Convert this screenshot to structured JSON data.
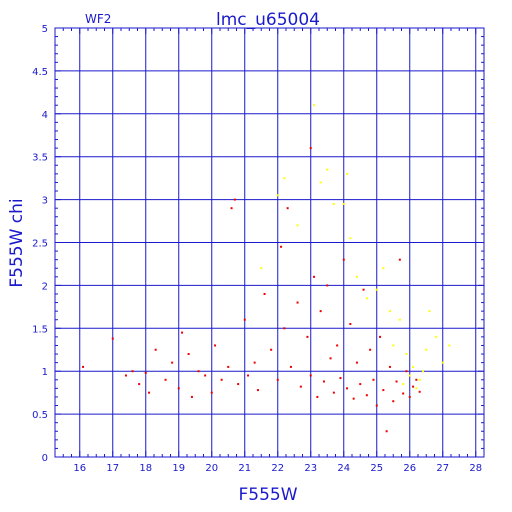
{
  "chart_data": {
    "type": "scatter",
    "title": "lmc_u65004",
    "corner_label": "WF2",
    "xlabel": "F555W",
    "ylabel": "F555W chi",
    "xlim": [
      15.25,
      28.25
    ],
    "ylim": [
      0,
      5
    ],
    "x_ticks": [
      16,
      17,
      18,
      19,
      20,
      21,
      22,
      23,
      24,
      25,
      26,
      27,
      28
    ],
    "y_ticks": [
      0,
      0.5,
      1,
      1.5,
      2,
      2.5,
      3,
      3.5,
      4,
      4.5,
      5
    ],
    "y_tick_labels": [
      "0",
      "0.5",
      "1",
      "1.5",
      "2",
      "2.5",
      "3",
      "3.5",
      "4",
      "4.5",
      "5"
    ],
    "grid": true,
    "colors": {
      "frame": "#1a1acc",
      "red_series": "#ee0000",
      "yellow_series": "#ffff00"
    },
    "series": [
      {
        "color": "#ee0000",
        "points": [
          [
            16.1,
            1.05
          ],
          [
            17.0,
            1.38
          ],
          [
            17.4,
            0.95
          ],
          [
            17.6,
            1.0
          ],
          [
            17.8,
            0.85
          ],
          [
            18.0,
            0.98
          ],
          [
            18.1,
            0.75
          ],
          [
            18.3,
            1.25
          ],
          [
            18.6,
            0.9
          ],
          [
            18.8,
            1.1
          ],
          [
            19.0,
            0.8
          ],
          [
            19.1,
            1.45
          ],
          [
            19.3,
            1.2
          ],
          [
            19.4,
            0.7
          ],
          [
            19.6,
            1.0
          ],
          [
            19.8,
            0.95
          ],
          [
            20.0,
            0.75
          ],
          [
            20.1,
            1.3
          ],
          [
            20.3,
            0.9
          ],
          [
            20.5,
            1.05
          ],
          [
            20.7,
            3.0
          ],
          [
            20.6,
            2.9
          ],
          [
            20.8,
            0.85
          ],
          [
            21.0,
            1.6
          ],
          [
            21.1,
            0.95
          ],
          [
            21.3,
            1.1
          ],
          [
            21.4,
            0.78
          ],
          [
            21.6,
            1.9
          ],
          [
            21.8,
            1.25
          ],
          [
            22.0,
            0.9
          ],
          [
            22.1,
            2.45
          ],
          [
            22.2,
            1.5
          ],
          [
            22.3,
            2.9
          ],
          [
            22.4,
            1.05
          ],
          [
            22.6,
            1.8
          ],
          [
            22.7,
            0.82
          ],
          [
            22.9,
            1.4
          ],
          [
            23.0,
            3.6
          ],
          [
            23.0,
            0.95
          ],
          [
            23.1,
            2.1
          ],
          [
            23.2,
            0.7
          ],
          [
            23.3,
            1.7
          ],
          [
            23.4,
            0.88
          ],
          [
            23.5,
            2.0
          ],
          [
            23.6,
            1.15
          ],
          [
            23.7,
            0.75
          ],
          [
            23.8,
            1.3
          ],
          [
            23.9,
            0.92
          ],
          [
            24.0,
            2.3
          ],
          [
            24.1,
            0.8
          ],
          [
            24.2,
            1.55
          ],
          [
            24.3,
            0.68
          ],
          [
            24.4,
            1.1
          ],
          [
            24.5,
            0.85
          ],
          [
            24.6,
            1.95
          ],
          [
            24.7,
            0.72
          ],
          [
            24.8,
            1.25
          ],
          [
            24.9,
            0.9
          ],
          [
            25.0,
            0.6
          ],
          [
            25.1,
            1.4
          ],
          [
            25.2,
            0.78
          ],
          [
            25.3,
            0.3
          ],
          [
            25.4,
            1.05
          ],
          [
            25.5,
            0.65
          ],
          [
            25.6,
            0.88
          ],
          [
            25.7,
            2.3
          ],
          [
            25.8,
            0.74
          ],
          [
            25.9,
            1.0
          ],
          [
            26.0,
            0.7
          ],
          [
            26.1,
            0.82
          ],
          [
            26.2,
            0.9
          ],
          [
            26.3,
            0.76
          ]
        ]
      },
      {
        "color": "#ffff00",
        "points": [
          [
            21.5,
            2.2
          ],
          [
            22.0,
            3.05
          ],
          [
            22.2,
            3.25
          ],
          [
            22.6,
            2.7
          ],
          [
            23.1,
            4.1
          ],
          [
            23.3,
            3.2
          ],
          [
            23.5,
            3.35
          ],
          [
            23.7,
            2.95
          ],
          [
            24.0,
            2.95
          ],
          [
            24.1,
            3.3
          ],
          [
            24.2,
            2.55
          ],
          [
            24.4,
            2.1
          ],
          [
            24.7,
            1.85
          ],
          [
            25.0,
            1.95
          ],
          [
            25.2,
            2.2
          ],
          [
            25.4,
            1.7
          ],
          [
            25.5,
            1.3
          ],
          [
            25.7,
            1.6
          ],
          [
            25.9,
            1.2
          ],
          [
            26.0,
            0.95
          ],
          [
            26.1,
            1.05
          ],
          [
            26.3,
            0.9
          ],
          [
            26.5,
            1.25
          ],
          [
            26.6,
            1.7
          ],
          [
            26.8,
            1.4
          ],
          [
            27.0,
            1.1
          ],
          [
            27.2,
            1.3
          ],
          [
            26.2,
            0.8
          ],
          [
            25.8,
            0.85
          ],
          [
            26.4,
            1.0
          ]
        ]
      }
    ]
  }
}
